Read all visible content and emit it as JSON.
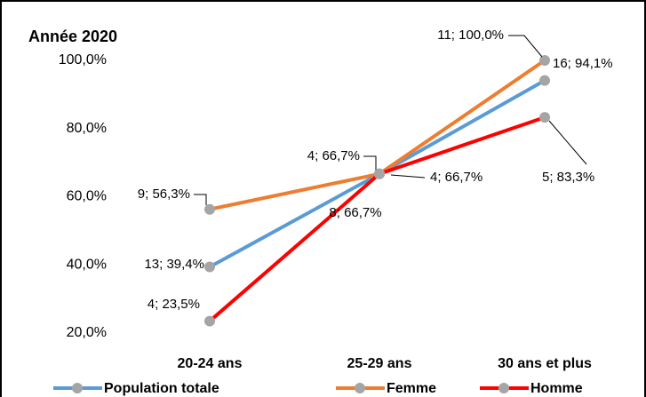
{
  "chart_data": {
    "type": "line",
    "title": "Année 2020",
    "categories": [
      "20-24 ans",
      "25-29 ans",
      "30 ans et plus"
    ],
    "ylim": [
      20,
      100
    ],
    "yticks": [
      {
        "value": 20,
        "label": "20,0%"
      },
      {
        "value": 40,
        "label": "40,0%"
      },
      {
        "value": 60,
        "label": "60,0%"
      },
      {
        "value": 80,
        "label": "80,0%"
      },
      {
        "value": 100,
        "label": "100,0%"
      }
    ],
    "grid": false,
    "marker_color": "#a5a5a5",
    "series": [
      {
        "name": "Population totale",
        "color": "#5b9bd5",
        "values": [
          39.4,
          66.7,
          94.1
        ],
        "value_labels": [
          "13; 39,4%",
          "8; 66,7%",
          "16; 94,1%"
        ]
      },
      {
        "name": "Femme",
        "color": "#ed7d31",
        "values": [
          56.3,
          66.7,
          100.0
        ],
        "value_labels": [
          "9; 56,3%",
          "4; 66,7%",
          "11; 100,0%"
        ]
      },
      {
        "name": "Homme",
        "color": "#ff0000",
        "values": [
          23.5,
          66.7,
          83.3
        ],
        "value_labels": [
          "4; 23,5%",
          "4; 66,7%",
          "5; 83,3%"
        ]
      }
    ]
  }
}
